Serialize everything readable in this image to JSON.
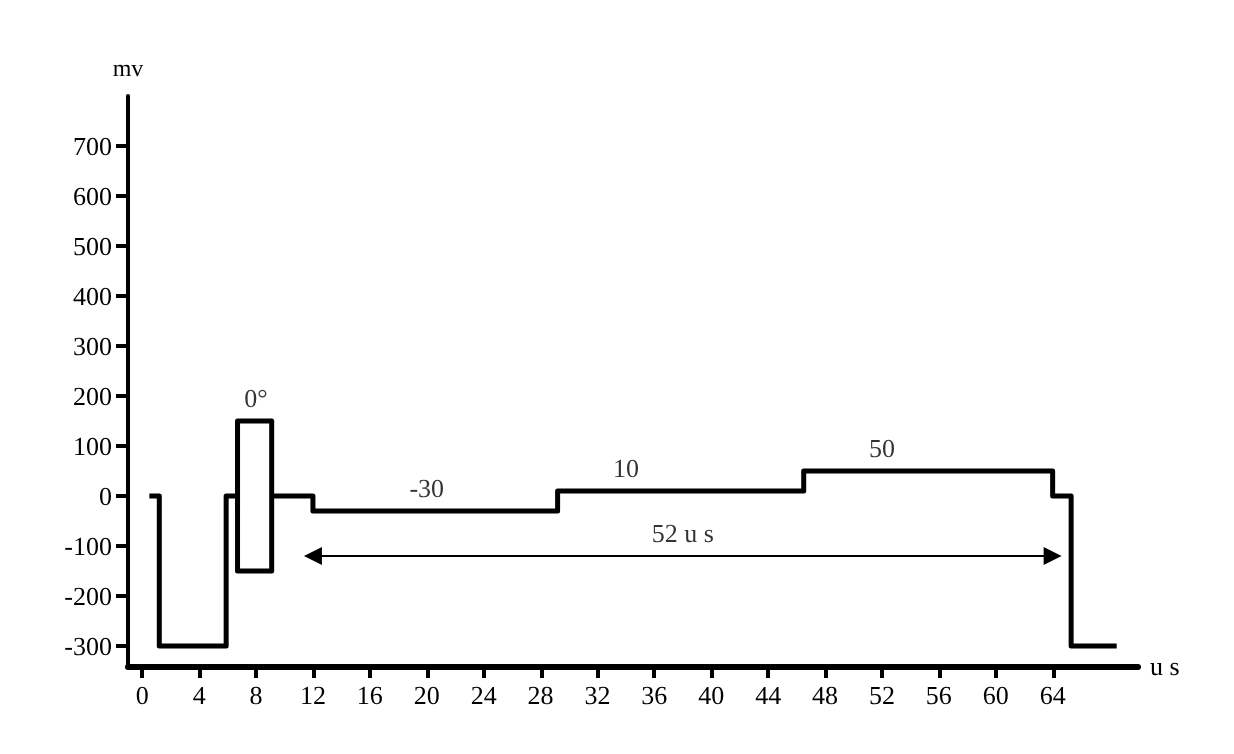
{
  "chart_data": {
    "type": "line",
    "xlabel": "u s",
    "ylabel": "mv",
    "xlim": [
      -1,
      70
    ],
    "ylim": [
      -340,
      800
    ],
    "xticks": [
      0,
      4,
      8,
      12,
      16,
      20,
      24,
      28,
      32,
      36,
      40,
      44,
      48,
      52,
      56,
      60,
      64
    ],
    "yticks": [
      -300,
      -200,
      -100,
      0,
      100,
      200,
      300,
      400,
      500,
      600,
      700
    ],
    "grid": false,
    "marker": "none",
    "line_style": "solid",
    "series": [
      {
        "color": "#000000",
        "x": [
          0.5,
          1.2,
          1.2,
          5.9,
          5.9,
          6.7,
          6.7,
          9.1,
          9.1,
          6.7,
          6.7
        ],
        "values": [
          0,
          0,
          -300,
          -300,
          0,
          0,
          150,
          150,
          -150,
          -150,
          0
        ]
      },
      {
        "color": "#000000",
        "x": [
          9.1,
          12,
          12,
          29.2,
          29.2,
          46.5,
          46.5,
          64,
          64,
          65.3,
          65.3,
          68.5
        ],
        "values": [
          0,
          0,
          -30,
          -30,
          10,
          10,
          50,
          50,
          0,
          0,
          -300,
          -300
        ]
      },
      {
        "color": "#000000",
        "marker": "triangle",
        "x": [
          12,
          64
        ],
        "values": [
          -120,
          -120
        ]
      }
    ],
    "annotations": [
      {
        "text": "0°",
        "x": 8,
        "y": 150
      },
      {
        "text": "-30",
        "x": 20,
        "y": -30
      },
      {
        "text": "10",
        "x": 34,
        "y": 10
      },
      {
        "text": "50",
        "x": 52,
        "y": 50
      },
      {
        "text": "52 u s",
        "x": 38,
        "y": -120
      }
    ]
  }
}
